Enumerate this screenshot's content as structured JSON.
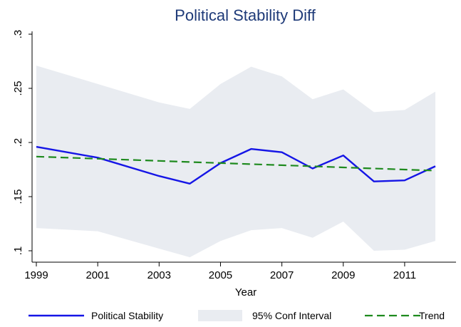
{
  "chart_data": {
    "type": "line",
    "title": "Political Stability Diff",
    "xlabel": "Year",
    "ylabel": "",
    "xlim": [
      1999,
      2012
    ],
    "ylim": [
      0.1,
      0.3
    ],
    "grid": false,
    "legend_position": "bottom",
    "x_ticks": [
      {
        "value": 1999,
        "label": "1999"
      },
      {
        "value": 2001,
        "label": "2001"
      },
      {
        "value": 2003,
        "label": "2003"
      },
      {
        "value": 2005,
        "label": "2005"
      },
      {
        "value": 2007,
        "label": "2007"
      },
      {
        "value": 2009,
        "label": "2009"
      },
      {
        "value": 2011,
        "label": "2011"
      }
    ],
    "y_ticks": [
      {
        "value": 0.1,
        "label": ".1"
      },
      {
        "value": 0.15,
        "label": ".15"
      },
      {
        "value": 0.2,
        "label": ".2"
      },
      {
        "value": 0.25,
        "label": ".25"
      },
      {
        "value": 0.3,
        "label": ".3"
      }
    ],
    "x": [
      1999,
      2001,
      2003,
      2004,
      2005,
      2006,
      2007,
      2008,
      2009,
      2010,
      2011,
      2012
    ],
    "series": [
      {
        "name": "Political Stability",
        "kind": "line",
        "color": "#1515e6",
        "values": [
          0.196,
          0.186,
          0.169,
          0.162,
          0.181,
          0.194,
          0.191,
          0.176,
          0.188,
          0.164,
          0.165,
          0.178
        ]
      },
      {
        "name": "95% Conf Interval",
        "kind": "band",
        "color": "#e9ecf1",
        "upper": [
          0.271,
          0.254,
          0.237,
          0.231,
          0.254,
          0.27,
          0.261,
          0.24,
          0.249,
          0.228,
          0.23,
          0.247
        ],
        "lower": [
          0.121,
          0.118,
          0.102,
          0.094,
          0.109,
          0.119,
          0.121,
          0.112,
          0.127,
          0.1,
          0.101,
          0.109
        ]
      },
      {
        "name": "Trend",
        "kind": "dashed-line",
        "color": "#1e8a1e",
        "values": [
          0.187,
          0.185,
          0.183,
          0.182,
          0.181,
          0.18,
          0.179,
          0.178,
          0.177,
          0.176,
          0.175,
          0.174
        ]
      }
    ],
    "legend": [
      {
        "label": "Political Stability",
        "series": 0
      },
      {
        "label": "95% Conf Interval",
        "series": 1
      },
      {
        "label": "Trend",
        "series": 2
      }
    ]
  }
}
